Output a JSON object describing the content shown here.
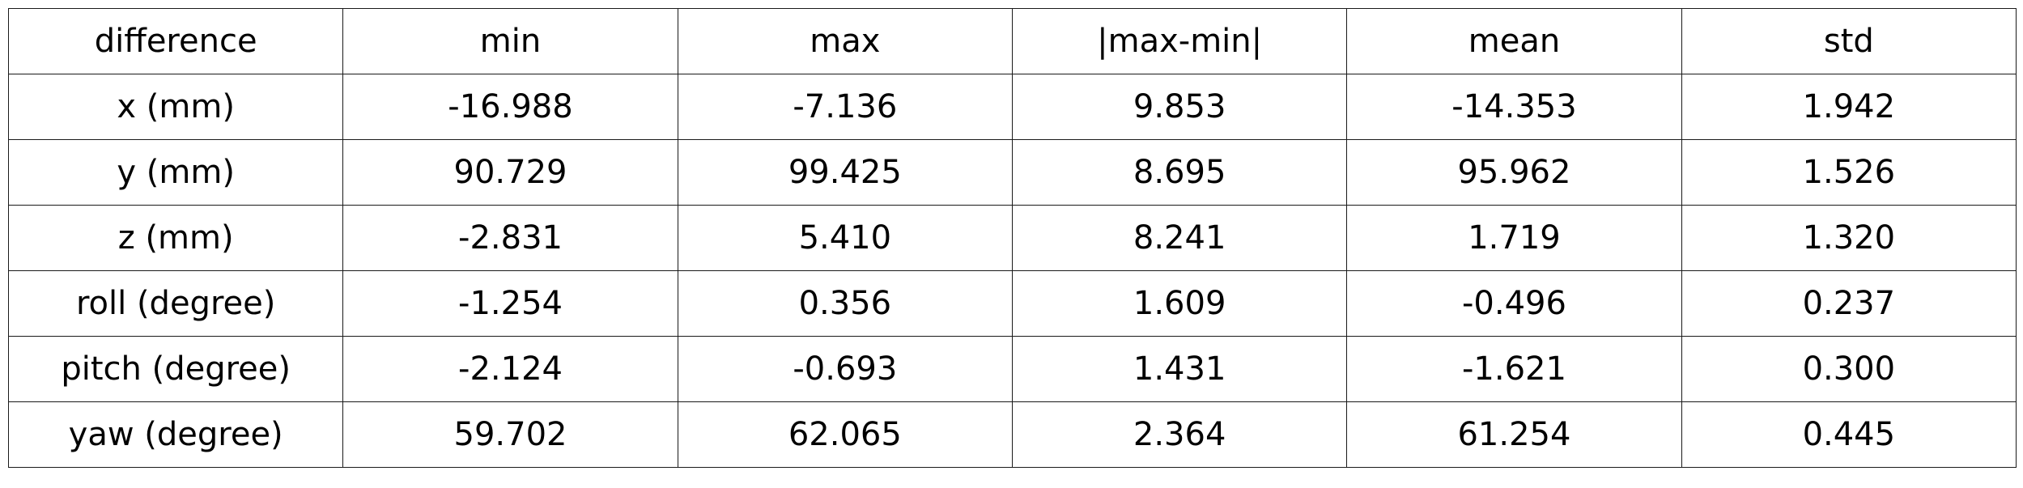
{
  "chart_data": {
    "type": "table",
    "columns": [
      "difference",
      "min",
      "max",
      "|max-min|",
      "mean",
      "std"
    ],
    "rows": [
      [
        "x (mm)",
        "-16.988",
        "-7.136",
        "9.853",
        "-14.353",
        "1.942"
      ],
      [
        "y (mm)",
        "90.729",
        "99.425",
        "8.695",
        "95.962",
        "1.526"
      ],
      [
        "z (mm)",
        "-2.831",
        "5.410",
        "8.241",
        "1.719",
        "1.320"
      ],
      [
        "roll (degree)",
        "-1.254",
        "0.356",
        "1.609",
        "-0.496",
        "0.237"
      ],
      [
        "pitch (degree)",
        "-2.124",
        "-0.693",
        "1.431",
        "-1.621",
        "0.300"
      ],
      [
        "yaw (degree)",
        "59.702",
        "62.065",
        "2.364",
        "61.254",
        "0.445"
      ]
    ]
  }
}
